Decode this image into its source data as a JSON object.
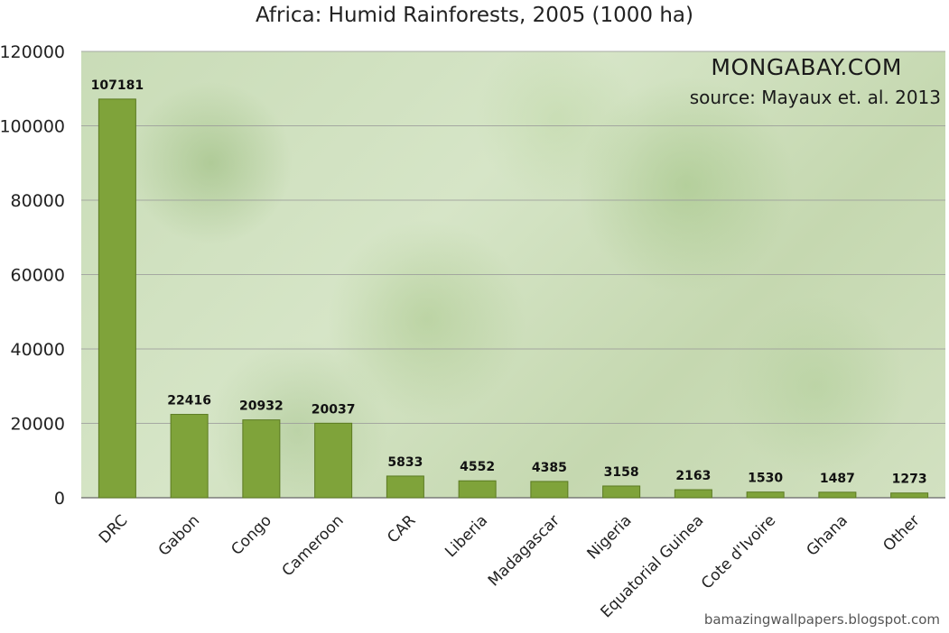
{
  "chart_data": {
    "type": "bar",
    "title": "Africa: Humid Rainforests, 2005 (1000 ha)",
    "categories": [
      "DRC",
      "Gabon",
      "Congo",
      "Cameroon",
      "CAR",
      "Liberia",
      "Madagascar",
      "Nigeria",
      "Equatorial Guinea",
      "Cote d'Ivoire",
      "Ghana",
      "Other"
    ],
    "values": [
      107181,
      22416,
      20932,
      20037,
      5833,
      4552,
      4385,
      3158,
      2163,
      1530,
      1487,
      1273
    ],
    "xlabel": "",
    "ylabel": "",
    "ylim": [
      0,
      120000
    ],
    "yticks": [
      0,
      20000,
      40000,
      60000,
      80000,
      100000,
      120000
    ],
    "grid": true,
    "bar_color": "#7fa33a",
    "bar_edge_color": "#5b7a22",
    "data_labels": true,
    "annotations": [
      "MONGABAY.COM",
      "source: Mayaux et. al. 2013"
    ]
  },
  "watermark": {
    "brand": "MONGABAY.COM",
    "source": "source: Mayaux et. al. 2013"
  },
  "footer": {
    "credit": "bamazingwallpapers.blogspot.com"
  }
}
